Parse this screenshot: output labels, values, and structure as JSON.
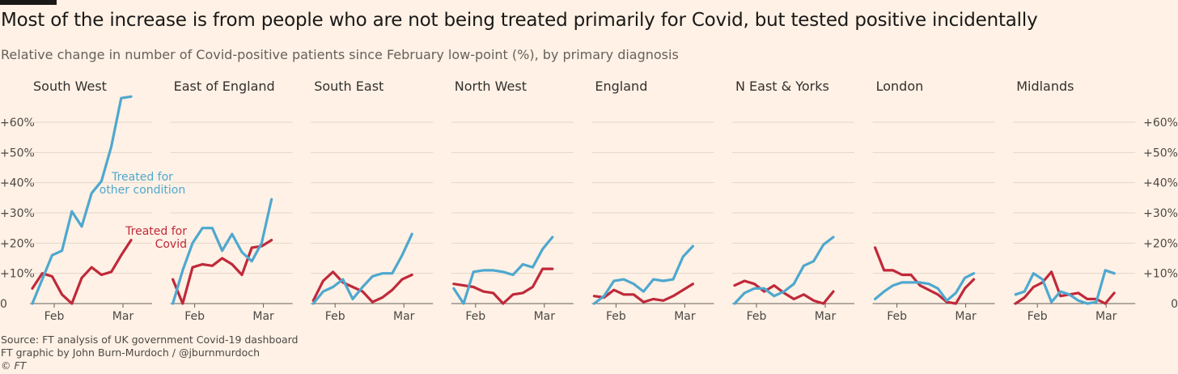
{
  "title": "Most of the increase is from people who are not being treated primarily for Covid, but tested positive incidentally",
  "subtitle": "Relative change in number of Covid-positive patients since February low-point (%), by primary diagnosis",
  "footer": {
    "source": "Source: FT analysis of UK government Covid-19 dashboard",
    "credit": "FT graphic by John Burn-Murdoch / @jburnmurdoch",
    "copyright": "© FT"
  },
  "colors": {
    "other": "#4ea8cf",
    "covid": "#c0293a",
    "background": "#fff1e5"
  },
  "chart_data": {
    "type": "line",
    "unit": "%",
    "ylim": [
      0,
      65
    ],
    "y_ticks": [
      0,
      10,
      20,
      30,
      40,
      50,
      60
    ],
    "y_tick_labels": [
      "0",
      "+10%",
      "+20%",
      "+30%",
      "+40%",
      "+50%",
      "+60%"
    ],
    "x_ticks": [
      "Feb",
      "Mar"
    ],
    "grid": true,
    "annotations": [
      {
        "text_lines": [
          "Treated for",
          "other condition"
        ],
        "series": "other",
        "panel": "South West"
      },
      {
        "text_lines": [
          "Treated for",
          "Covid"
        ],
        "series": "covid",
        "panel": "South West"
      }
    ],
    "panels": [
      {
        "name": "South West",
        "other": [
          0,
          8,
          16,
          17.5,
          30.5,
          25.5,
          36.5,
          40.5,
          52,
          68,
          68.5
        ],
        "covid": [
          5,
          10,
          9,
          3,
          0,
          8.5,
          12,
          9.5,
          10.5,
          16,
          21
        ]
      },
      {
        "name": "East of England",
        "other": [
          0,
          11,
          20,
          25,
          25,
          17.5,
          23,
          17,
          14,
          20,
          34.5
        ],
        "covid": [
          8,
          0,
          12,
          13,
          12.5,
          15,
          13,
          9.5,
          18.5,
          19,
          21
        ]
      },
      {
        "name": "South East",
        "other": [
          0,
          4,
          5.5,
          8,
          1.5,
          5.5,
          9,
          10,
          10,
          16,
          23
        ],
        "covid": [
          1,
          7.5,
          10.5,
          7,
          5.5,
          4,
          0.5,
          2,
          4.5,
          8,
          9.5
        ]
      },
      {
        "name": "North West",
        "other": [
          5,
          0,
          10.5,
          11,
          11,
          10.5,
          9.5,
          13,
          12,
          18,
          22
        ],
        "covid": [
          6.5,
          6,
          5.5,
          4,
          3.5,
          0,
          3,
          3.5,
          5.5,
          11.5,
          11.5
        ]
      },
      {
        "name": "England",
        "other": [
          0,
          2.5,
          7.5,
          8,
          6.5,
          4,
          8,
          7.5,
          8,
          15.5,
          19
        ],
        "covid": [
          2.5,
          2,
          4.5,
          3,
          3,
          0.5,
          1.5,
          1,
          2.5,
          4.5,
          6.5
        ]
      },
      {
        "name": "N East & Yorks",
        "other": [
          0,
          3.5,
          5,
          5,
          2.5,
          4,
          6.5,
          12.5,
          14,
          19.5,
          22
        ],
        "covid": [
          6,
          7.5,
          6.5,
          4,
          6,
          3.5,
          1.5,
          3,
          1,
          0,
          4
        ]
      },
      {
        "name": "London",
        "other": [
          1.5,
          4,
          6,
          7,
          7,
          7,
          6.5,
          5,
          1,
          3.5,
          8.5,
          10
        ],
        "covid": [
          18.5,
          11,
          11,
          9.5,
          9.5,
          6,
          4.5,
          3,
          0.5,
          0,
          5,
          8
        ]
      },
      {
        "name": "Midlands",
        "other": [
          3,
          4,
          10,
          8,
          0.5,
          4,
          3,
          1,
          0,
          0.5,
          11,
          10
        ],
        "covid": [
          0,
          2,
          5.5,
          7,
          10.5,
          2.5,
          3,
          3.5,
          1.5,
          1.5,
          0,
          3.5
        ]
      }
    ]
  }
}
